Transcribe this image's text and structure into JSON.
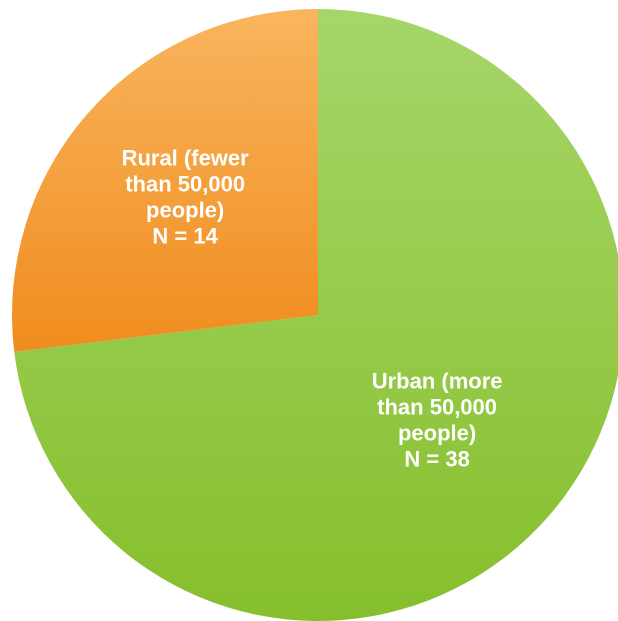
{
  "chart_data": {
    "type": "pie",
    "title": "",
    "slices": [
      {
        "label_lines": [
          "Urban (more",
          "than 50,000",
          "people)",
          "N = 38"
        ],
        "value": 38,
        "color_light": "#a6d66a",
        "color_dark": "#86bf2c"
      },
      {
        "label_lines": [
          "Rural (fewer",
          "than 50,000",
          "people)",
          "N = 14"
        ],
        "value": 14,
        "color_light": "#f9b55e",
        "color_dark": "#f08c1e"
      }
    ],
    "start_angle_deg": 0,
    "direction": "clockwise",
    "legend": "none"
  }
}
